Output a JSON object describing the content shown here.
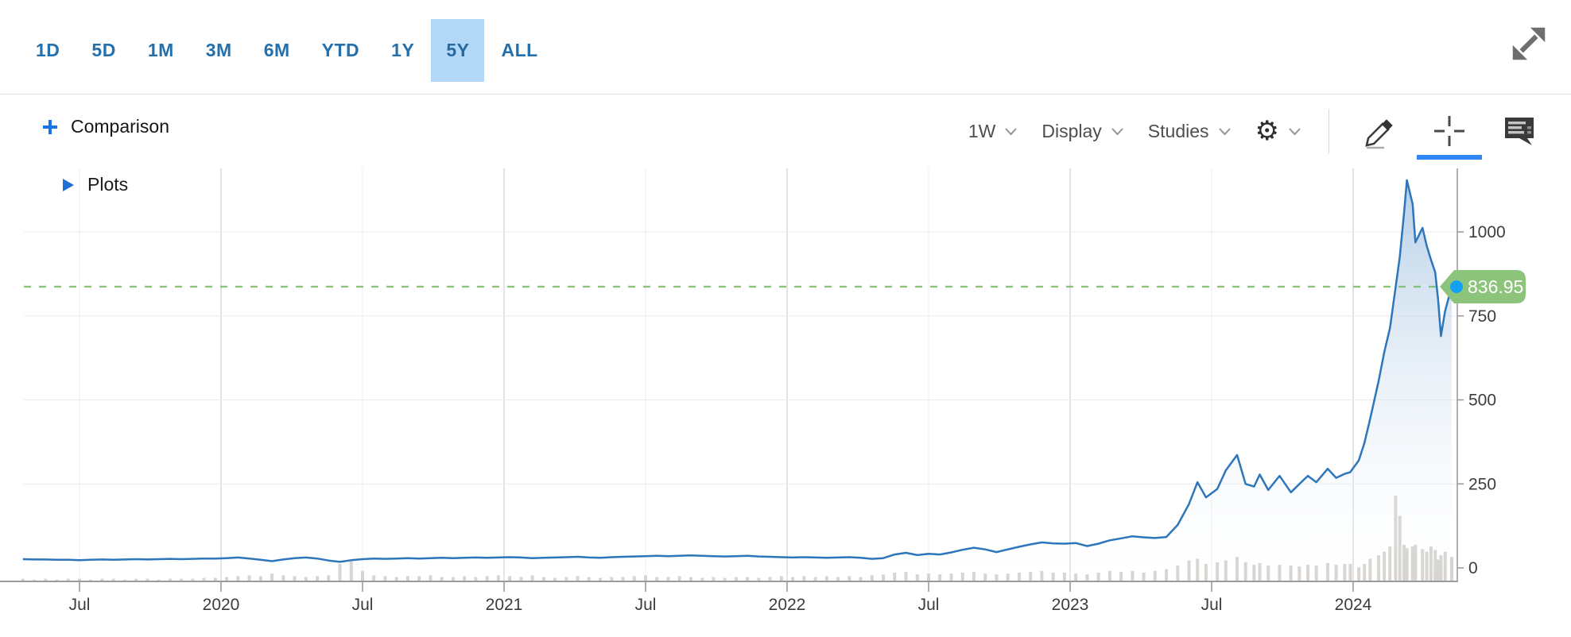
{
  "topbar": {
    "ranges": [
      "1D",
      "5D",
      "1M",
      "3M",
      "6M",
      "YTD",
      "1Y",
      "5Y",
      "ALL"
    ],
    "selected_range": "5Y"
  },
  "toolbar": {
    "comparison_label": "Comparison",
    "interval_label": "1W",
    "display_label": "Display",
    "studies_label": "Studies"
  },
  "plots": {
    "label": "Plots"
  },
  "icons": {
    "expand": "expand-diagonal-icon",
    "comparison_add": "plus-icon",
    "dropdown": "chevron-down-icon",
    "settings": "gear-icon",
    "draw": "pencil-icon",
    "crosshair": "crosshair-icon",
    "comments": "news-comment-icon",
    "plots_disclosure": "triangle-right-icon"
  },
  "chart_data": {
    "type": "area",
    "description": "5-year weekly price line with volume bars",
    "x_unit": "years_since_2019_jan",
    "xlim": [
      0.3,
      5.36
    ],
    "ylim": [
      0,
      1200
    ],
    "grid": true,
    "x_ticks": [
      {
        "t": 0.5,
        "label": "Jul",
        "minor": true
      },
      {
        "t": 1.0,
        "label": "2020",
        "minor": false
      },
      {
        "t": 1.5,
        "label": "Jul",
        "minor": true
      },
      {
        "t": 2.0,
        "label": "2021",
        "minor": false
      },
      {
        "t": 2.5,
        "label": "Jul",
        "minor": true
      },
      {
        "t": 3.0,
        "label": "2022",
        "minor": false
      },
      {
        "t": 3.5,
        "label": "Jul",
        "minor": true
      },
      {
        "t": 4.0,
        "label": "2023",
        "minor": false
      },
      {
        "t": 4.5,
        "label": "Jul",
        "minor": true
      },
      {
        "t": 5.0,
        "label": "2024",
        "minor": false
      }
    ],
    "y_ticks": [
      {
        "value": 0,
        "label": "0"
      },
      {
        "value": 250,
        "label": "250"
      },
      {
        "value": 500,
        "label": "500"
      },
      {
        "value": 750,
        "label": "750"
      },
      {
        "value": 1000,
        "label": "1000"
      }
    ],
    "last_price": 836.95,
    "last_price_label": "836.95",
    "volume_units": "relative_0_100",
    "points": [
      [
        0.3,
        26,
        3
      ],
      [
        0.34,
        25,
        2
      ],
      [
        0.38,
        25,
        3
      ],
      [
        0.42,
        24,
        2
      ],
      [
        0.46,
        24,
        3
      ],
      [
        0.5,
        23,
        3
      ],
      [
        0.54,
        24,
        2
      ],
      [
        0.58,
        25,
        3
      ],
      [
        0.62,
        24,
        3
      ],
      [
        0.66,
        25,
        2
      ],
      [
        0.7,
        26,
        3
      ],
      [
        0.74,
        25,
        3
      ],
      [
        0.78,
        26,
        2
      ],
      [
        0.82,
        27,
        3
      ],
      [
        0.86,
        26,
        3
      ],
      [
        0.9,
        27,
        3
      ],
      [
        0.94,
        28,
        4
      ],
      [
        0.98,
        28,
        4
      ],
      [
        1.02,
        29,
        5
      ],
      [
        1.06,
        31,
        6
      ],
      [
        1.1,
        28,
        7
      ],
      [
        1.14,
        24,
        6
      ],
      [
        1.18,
        20,
        9
      ],
      [
        1.22,
        25,
        7
      ],
      [
        1.26,
        29,
        6
      ],
      [
        1.3,
        31,
        5
      ],
      [
        1.34,
        28,
        6
      ],
      [
        1.38,
        22,
        7
      ],
      [
        1.42,
        18,
        20
      ],
      [
        1.46,
        23,
        23
      ],
      [
        1.5,
        26,
        12
      ],
      [
        1.54,
        28,
        7
      ],
      [
        1.58,
        27,
        6
      ],
      [
        1.62,
        28,
        5
      ],
      [
        1.66,
        29,
        6
      ],
      [
        1.7,
        28,
        6
      ],
      [
        1.74,
        29,
        7
      ],
      [
        1.78,
        30,
        5
      ],
      [
        1.82,
        29,
        5
      ],
      [
        1.86,
        30,
        6
      ],
      [
        1.9,
        31,
        5
      ],
      [
        1.94,
        30,
        6
      ],
      [
        1.98,
        31,
        7
      ],
      [
        2.02,
        32,
        6
      ],
      [
        2.06,
        31,
        5
      ],
      [
        2.1,
        29,
        7
      ],
      [
        2.14,
        30,
        5
      ],
      [
        2.18,
        31,
        4
      ],
      [
        2.22,
        32,
        5
      ],
      [
        2.26,
        33,
        6
      ],
      [
        2.3,
        31,
        5
      ],
      [
        2.34,
        30,
        4
      ],
      [
        2.38,
        32,
        5
      ],
      [
        2.42,
        33,
        5
      ],
      [
        2.46,
        34,
        6
      ],
      [
        2.5,
        35,
        7
      ],
      [
        2.54,
        36,
        5
      ],
      [
        2.58,
        35,
        5
      ],
      [
        2.62,
        36,
        6
      ],
      [
        2.66,
        37,
        5
      ],
      [
        2.7,
        36,
        4
      ],
      [
        2.74,
        35,
        5
      ],
      [
        2.78,
        34,
        4
      ],
      [
        2.82,
        35,
        5
      ],
      [
        2.86,
        36,
        5
      ],
      [
        2.9,
        34,
        4
      ],
      [
        2.94,
        33,
        5
      ],
      [
        2.98,
        32,
        6
      ],
      [
        3.02,
        31,
        5
      ],
      [
        3.06,
        32,
        6
      ],
      [
        3.1,
        31,
        5
      ],
      [
        3.14,
        30,
        6
      ],
      [
        3.18,
        31,
        5
      ],
      [
        3.22,
        32,
        6
      ],
      [
        3.26,
        30,
        5
      ],
      [
        3.3,
        27,
        7
      ],
      [
        3.34,
        29,
        8
      ],
      [
        3.38,
        40,
        10
      ],
      [
        3.42,
        45,
        11
      ],
      [
        3.46,
        38,
        8
      ],
      [
        3.5,
        42,
        9
      ],
      [
        3.54,
        40,
        8
      ],
      [
        3.58,
        46,
        9
      ],
      [
        3.62,
        54,
        10
      ],
      [
        3.66,
        60,
        11
      ],
      [
        3.7,
        55,
        9
      ],
      [
        3.74,
        47,
        8
      ],
      [
        3.78,
        55,
        9
      ],
      [
        3.82,
        63,
        10
      ],
      [
        3.86,
        70,
        11
      ],
      [
        3.9,
        76,
        12
      ],
      [
        3.94,
        73,
        10
      ],
      [
        3.98,
        72,
        10
      ],
      [
        4.02,
        74,
        9
      ],
      [
        4.06,
        65,
        8
      ],
      [
        4.1,
        72,
        10
      ],
      [
        4.14,
        82,
        12
      ],
      [
        4.18,
        88,
        11
      ],
      [
        4.22,
        94,
        12
      ],
      [
        4.26,
        91,
        10
      ],
      [
        4.3,
        89,
        12
      ],
      [
        4.34,
        92,
        14
      ],
      [
        4.38,
        128,
        18
      ],
      [
        4.42,
        190,
        24
      ],
      [
        4.45,
        255,
        26
      ],
      [
        4.48,
        210,
        20
      ],
      [
        4.52,
        235,
        22
      ],
      [
        4.55,
        290,
        24
      ],
      [
        4.59,
        336,
        28
      ],
      [
        4.62,
        250,
        22
      ],
      [
        4.65,
        242,
        19
      ],
      [
        4.67,
        278,
        21
      ],
      [
        4.7,
        232,
        18
      ],
      [
        4.74,
        274,
        19
      ],
      [
        4.78,
        225,
        18
      ],
      [
        4.81,
        250,
        17
      ],
      [
        4.84,
        274,
        19
      ],
      [
        4.87,
        255,
        18
      ],
      [
        4.91,
        295,
        21
      ],
      [
        4.94,
        268,
        19
      ],
      [
        4.97,
        280,
        20
      ],
      [
        4.99,
        285,
        20
      ],
      [
        5.02,
        320,
        16
      ],
      [
        5.04,
        372,
        20
      ],
      [
        5.06,
        444,
        26
      ],
      [
        5.09,
        556,
        30
      ],
      [
        5.11,
        643,
        34
      ],
      [
        5.13,
        714,
        40
      ],
      [
        5.15,
        835,
        98
      ],
      [
        5.165,
        927,
        75
      ],
      [
        5.18,
        1059,
        42
      ],
      [
        5.19,
        1154,
        38
      ],
      [
        5.21,
        1083,
        40
      ],
      [
        5.22,
        969,
        42
      ],
      [
        5.245,
        1012,
        37
      ],
      [
        5.26,
        958,
        34
      ],
      [
        5.275,
        917,
        40
      ],
      [
        5.29,
        880,
        36
      ],
      [
        5.3,
        800,
        25
      ],
      [
        5.31,
        690,
        30
      ],
      [
        5.325,
        765,
        34
      ],
      [
        5.348,
        836.95,
        28
      ]
    ],
    "colors": {
      "line": "#2d76bb",
      "fill_top": "#a3c2e0",
      "fill_bottom": "#ffffff",
      "volume": "#cfcbc7",
      "grid_major": "#dcdcdc",
      "grid_minor": "#ededed",
      "grid_horizontal": "#ececec",
      "axis": "#9b9b9b",
      "tick_label": "#3c3c3c",
      "last_price_line": "#7cbf6d",
      "last_price_tag": "#8cc47c",
      "last_price_dot": "#14a0f4",
      "last_price_text": "#ffffff"
    }
  }
}
